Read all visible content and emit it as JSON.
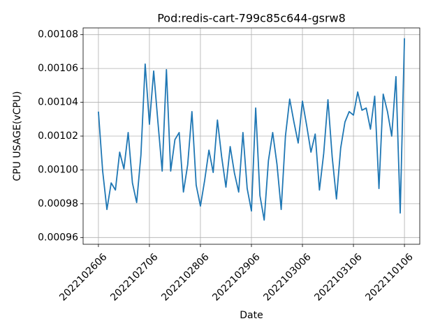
{
  "chart_data": {
    "type": "line",
    "title": "Pod:redis-cart-799c85c644-gsrw8",
    "x_label": "Date",
    "y_label": "CPU USAGE(vCPU)",
    "categories": [
      "2022102606",
      null,
      null,
      null,
      null,
      null,
      null,
      null,
      null,
      null,
      null,
      null,
      "2022102706",
      null,
      null,
      null,
      null,
      null,
      null,
      null,
      null,
      null,
      null,
      null,
      "2022102806",
      null,
      null,
      null,
      null,
      null,
      null,
      null,
      null,
      null,
      null,
      null,
      "2022102906",
      null,
      null,
      null,
      null,
      null,
      null,
      null,
      null,
      null,
      null,
      null,
      "2022103006",
      null,
      null,
      null,
      null,
      null,
      null,
      null,
      null,
      null,
      null,
      null,
      "2022103106",
      null,
      null,
      null,
      null,
      null,
      null,
      null,
      null,
      null,
      null,
      null,
      "2022110106"
    ],
    "values": [
      0.0010345,
      0.0009993,
      0.0009766,
      0.0009923,
      0.0009881,
      0.0010105,
      0.0010006,
      0.0010221,
      0.0009923,
      0.0009807,
      0.0010088,
      0.0010626,
      0.001027,
      0.0010585,
      0.0010283,
      0.0009993,
      0.0010593,
      0.0009993,
      0.0010179,
      0.0010221,
      0.0009869,
      0.001003,
      0.0010345,
      0.000991,
      0.0009786,
      0.0009939,
      0.0010117,
      0.0009985,
      0.0010295,
      0.0010076,
      0.0009898,
      0.0010138,
      0.0009981,
      0.0009869,
      0.0010221,
      0.000989,
      0.0009757,
      0.0010366,
      0.0009848,
      0.0009703,
      0.0010055,
      0.0010221,
      0.0010035,
      0.0009766,
      0.00102,
      0.0010419,
      0.0010283,
      0.0010159,
      0.0010407,
      0.0010262,
      0.0010105,
      0.0010212,
      0.0009881,
      0.0010097,
      0.0010415,
      0.0010076,
      0.0009828,
      0.001013,
      0.0010283,
      0.0010345,
      0.0010324,
      0.0010461,
      0.0010353,
      0.0010366,
      0.0010241,
      0.0010436,
      0.000989,
      0.0010448,
      0.0010345,
      0.00102,
      0.0010552,
      0.0009745,
      0.0010779
    ],
    "color": "#1f77b4",
    "ylim": [
      0.000956,
      0.001084
    ],
    "yticks": [
      0.00096,
      0.00098,
      {
        "value": 0.001,
        "label": "0.00100"
      },
      0.00102,
      0.00104,
      0.00106,
      0.00108
    ],
    "grid": true
  }
}
